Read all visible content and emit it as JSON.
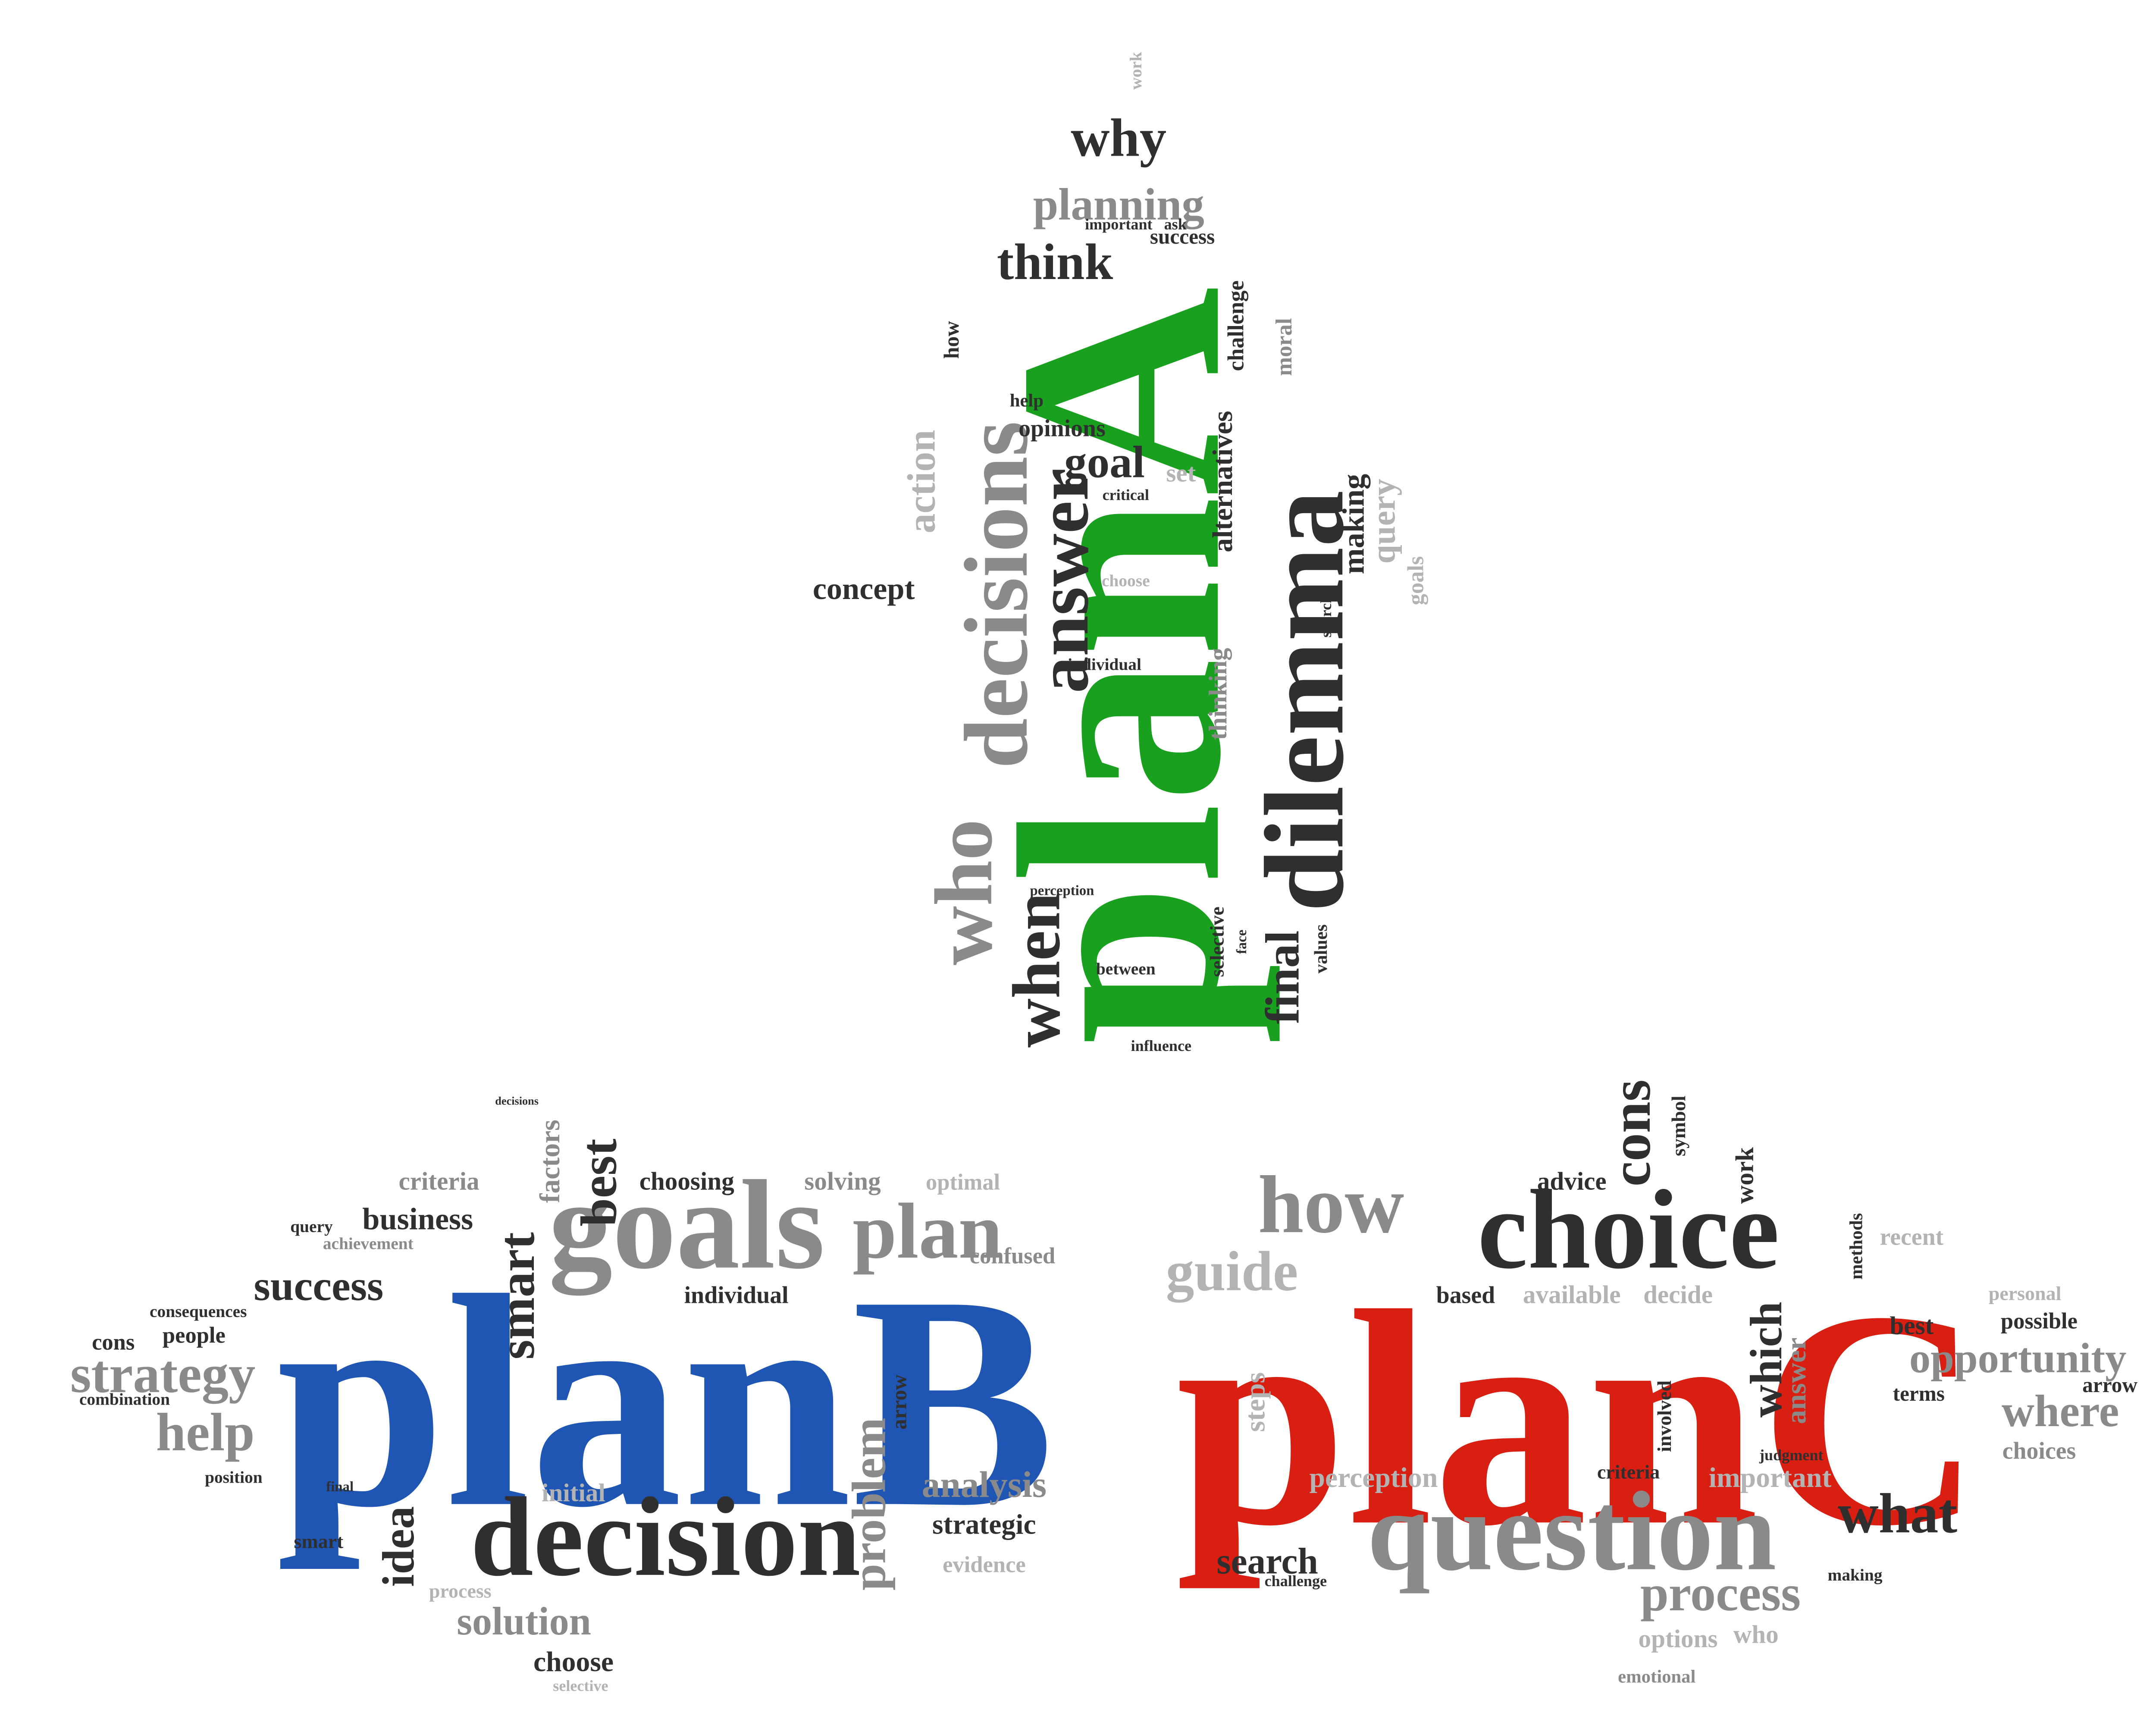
{
  "clouds": [
    {
      "words": [
        "planA",
        "dilemma",
        "decisions",
        "answer",
        "who",
        "when",
        "final",
        "think",
        "why",
        "planning",
        "goal",
        "concept",
        "opinions",
        "alternatives",
        "making",
        "query",
        "choose",
        "individual",
        "between",
        "success",
        "action",
        "challenge",
        "moral",
        "set",
        "critical",
        "help",
        "how",
        "perception",
        "influence",
        "values",
        "selective",
        "thinking",
        "search",
        "goals",
        "face",
        "work",
        "important",
        "ask"
      ]
    },
    {
      "words": [
        "planB",
        "goals",
        "decision",
        "plan",
        "strategy",
        "help",
        "success",
        "business",
        "best",
        "smart",
        "analysis",
        "solution",
        "choose",
        "choosing",
        "idea",
        "problem",
        "individual",
        "strategic",
        "evidence",
        "cons",
        "people",
        "criteria",
        "solving",
        "optimal",
        "confused",
        "factors",
        "initial",
        "position",
        "combination",
        "query",
        "achievement",
        "consequences",
        "arrow",
        "final",
        "smart",
        "process",
        "selective",
        "decisions"
      ]
    },
    {
      "words": [
        "planC",
        "choice",
        "how",
        "question",
        "process",
        "what",
        "search",
        "guide",
        "opportunity",
        "where",
        "cons",
        "which",
        "advice",
        "best",
        "possible",
        "perception",
        "important",
        "based",
        "available",
        "decide",
        "recent",
        "personal",
        "choices",
        "options",
        "who",
        "emotional",
        "symbol",
        "work",
        "steps",
        "answer",
        "terms",
        "arrow",
        "methods",
        "criteria",
        "judgment",
        "making",
        "involved",
        "challenge"
      ]
    }
  ]
}
